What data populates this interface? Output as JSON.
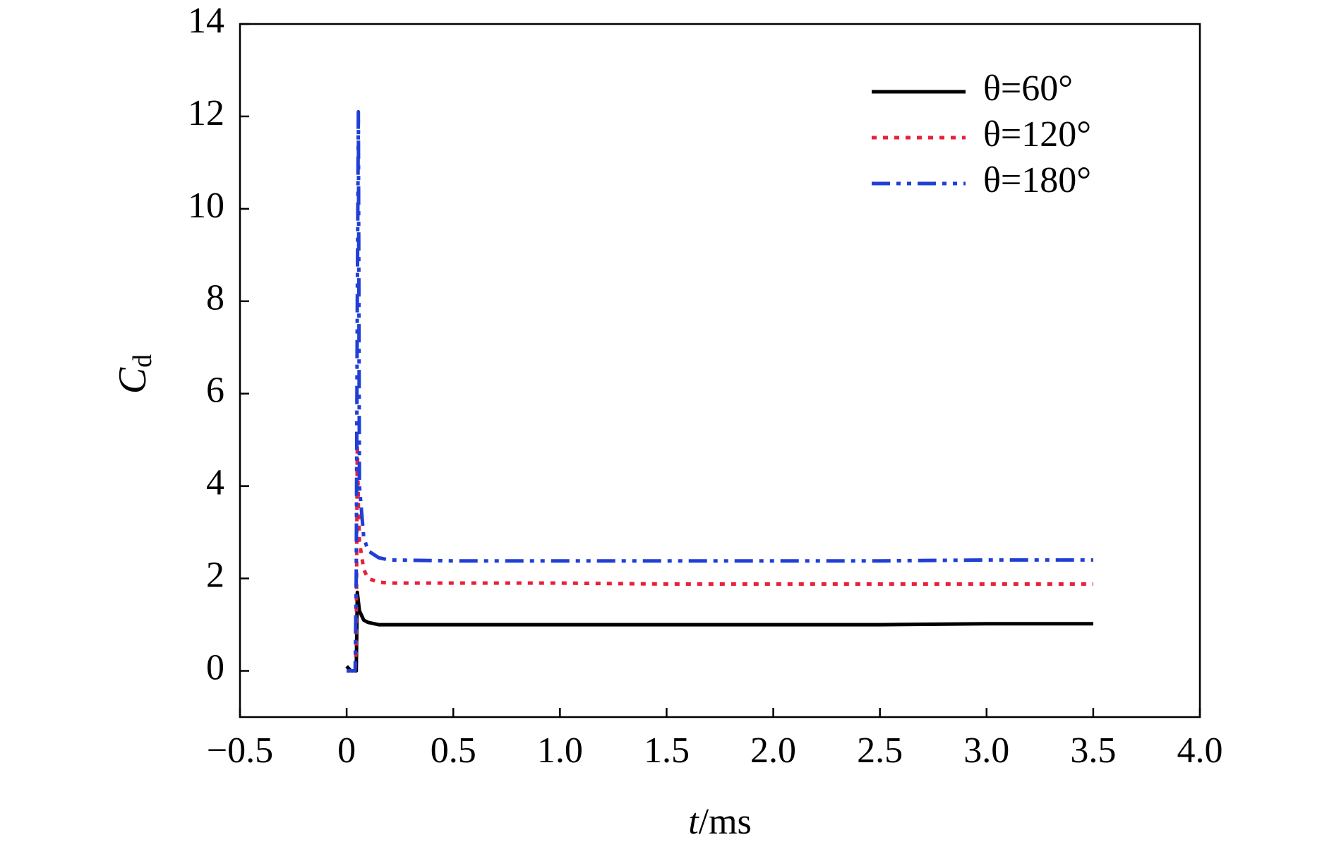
{
  "chart_data": {
    "type": "line",
    "xlabel": [
      "t",
      "/ms"
    ],
    "ylabel": [
      "C",
      "d"
    ],
    "x": [
      0,
      0.02,
      0.04,
      0.045,
      0.05,
      0.055,
      0.06,
      0.08,
      0.1,
      0.15,
      0.2,
      0.5,
      1.0,
      1.5,
      2.0,
      2.5,
      3.0,
      3.5
    ],
    "series": [
      {
        "name": "θ=60°",
        "color": "#000000",
        "style": "solid",
        "values": [
          0.1,
          0,
          0,
          0,
          1.7,
          1.5,
          1.3,
          1.1,
          1.05,
          1.0,
          1.0,
          1.0,
          1.0,
          1.0,
          1.0,
          1.0,
          1.02,
          1.02
        ]
      },
      {
        "name": "θ=120°",
        "color": "#e8203a",
        "style": "dotted",
        "values": [
          0,
          0,
          0,
          0.5,
          4.9,
          3.6,
          2.8,
          2.2,
          2.0,
          1.92,
          1.9,
          1.9,
          1.9,
          1.88,
          1.88,
          1.88,
          1.88,
          1.88
        ]
      },
      {
        "name": "θ=180°",
        "color": "#1f3fd6",
        "style": "dash-dot-dot",
        "values": [
          0,
          0,
          0,
          2.0,
          8.0,
          12.1,
          4.0,
          2.9,
          2.6,
          2.45,
          2.4,
          2.38,
          2.38,
          2.38,
          2.38,
          2.38,
          2.4,
          2.4
        ]
      }
    ],
    "xlim": [
      -0.5,
      4.0
    ],
    "ylim": [
      -1,
      14
    ],
    "xticks": [
      {
        "value": -0.5,
        "label": "−0.5"
      },
      0,
      0.5,
      {
        "value": 1.0,
        "label": "1.0"
      },
      1.5,
      {
        "value": 2.0,
        "label": "2.0"
      },
      2.5,
      {
        "value": 3.0,
        "label": "3.0"
      },
      3.5,
      {
        "value": 4.0,
        "label": "4.0"
      }
    ],
    "yticks": [
      0,
      2,
      4,
      6,
      8,
      10,
      12,
      14
    ],
    "legend": "upper right",
    "grid": false
  }
}
